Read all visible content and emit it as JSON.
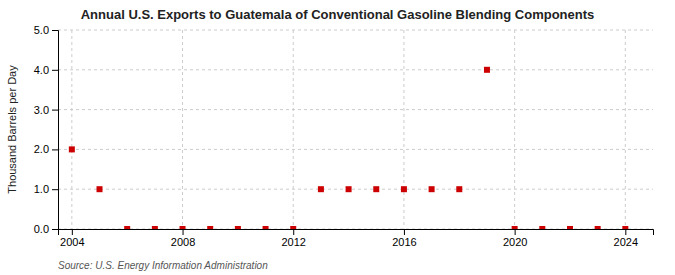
{
  "chart_data": {
    "type": "scatter",
    "title": "Annual U.S. Exports to Guatemala of Conventional Gasoline Blending Components",
    "ylabel": "Thousand Barrels per Day",
    "source": "Source: U.S. Energy Information Administration",
    "x": [
      2004,
      2005,
      2006,
      2007,
      2008,
      2009,
      2010,
      2011,
      2012,
      2013,
      2014,
      2015,
      2016,
      2017,
      2018,
      2019,
      2020,
      2021,
      2022,
      2023,
      2024
    ],
    "values": [
      2.0,
      1.0,
      0.0,
      0.0,
      0.0,
      0.0,
      0.0,
      0.0,
      0.0,
      1.0,
      1.0,
      1.0,
      1.0,
      1.0,
      1.0,
      4.0,
      0.0,
      0.0,
      0.0,
      0.0,
      0.0
    ],
    "color": "#cc0000",
    "marker": "square",
    "xlim": [
      2003.5,
      2025
    ],
    "ylim": [
      0.0,
      5.0
    ],
    "xticks": [
      2004,
      2008,
      2012,
      2016,
      2020,
      2024
    ],
    "yticks": [
      {
        "value": 0.0,
        "label": "0.0"
      },
      {
        "value": 1.0,
        "label": "1.0"
      },
      {
        "value": 2.0,
        "label": "2.0"
      },
      {
        "value": 3.0,
        "label": "3.0"
      },
      {
        "value": 4.0,
        "label": "4.0"
      },
      {
        "value": 5.0,
        "label": "5.0"
      }
    ],
    "grid": true
  }
}
